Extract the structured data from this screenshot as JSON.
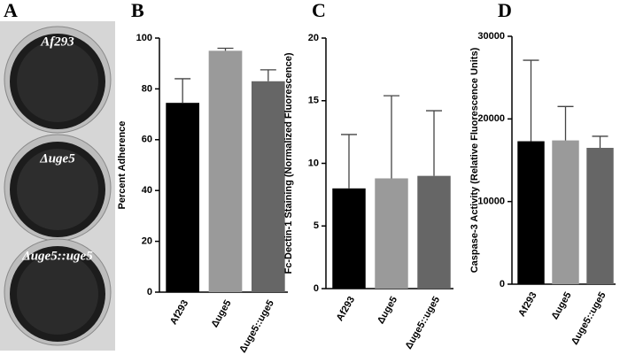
{
  "panel_a": {
    "letter": "A",
    "wells": [
      "Af293",
      "Δuge5",
      "Δuge5::uge5"
    ]
  },
  "chart_data": [
    {
      "type": "bar",
      "panel": "B",
      "ylabel": "Percent Adherence",
      "categories": [
        "Af293",
        "Δuge5",
        "Δuge5::uge5"
      ],
      "values": [
        74.5,
        95,
        83
      ],
      "errors": [
        9.5,
        1,
        4.5
      ],
      "colors": [
        "#000000",
        "#9a9a9a",
        "#666666"
      ],
      "ylim": [
        0,
        100
      ],
      "yticks": [
        0,
        20,
        40,
        60,
        80,
        100
      ]
    },
    {
      "type": "bar",
      "panel": "C",
      "ylabel": "Fc-Dectin-1 Staining (Normalized Fluorescence)",
      "categories": [
        "Af293",
        "Δuge5",
        "Δuge5::uge5"
      ],
      "values": [
        8,
        8.8,
        9
      ],
      "errors": [
        4.3,
        6.6,
        5.2
      ],
      "colors": [
        "#000000",
        "#9a9a9a",
        "#666666"
      ],
      "ylim": [
        0,
        20
      ],
      "yticks": [
        0,
        5,
        10,
        15,
        20
      ]
    },
    {
      "type": "bar",
      "panel": "D",
      "ylabel": "Caspase-3 Activity (Relative Fluorescence Units)",
      "categories": [
        "Af293",
        "Δuge5",
        "Δuge5::uge5"
      ],
      "values": [
        17300,
        17400,
        16500
      ],
      "errors": [
        9800,
        4100,
        1400
      ],
      "colors": [
        "#000000",
        "#9a9a9a",
        "#666666"
      ],
      "ylim": [
        0,
        30000
      ],
      "yticks": [
        0,
        10000,
        20000,
        30000
      ]
    }
  ]
}
